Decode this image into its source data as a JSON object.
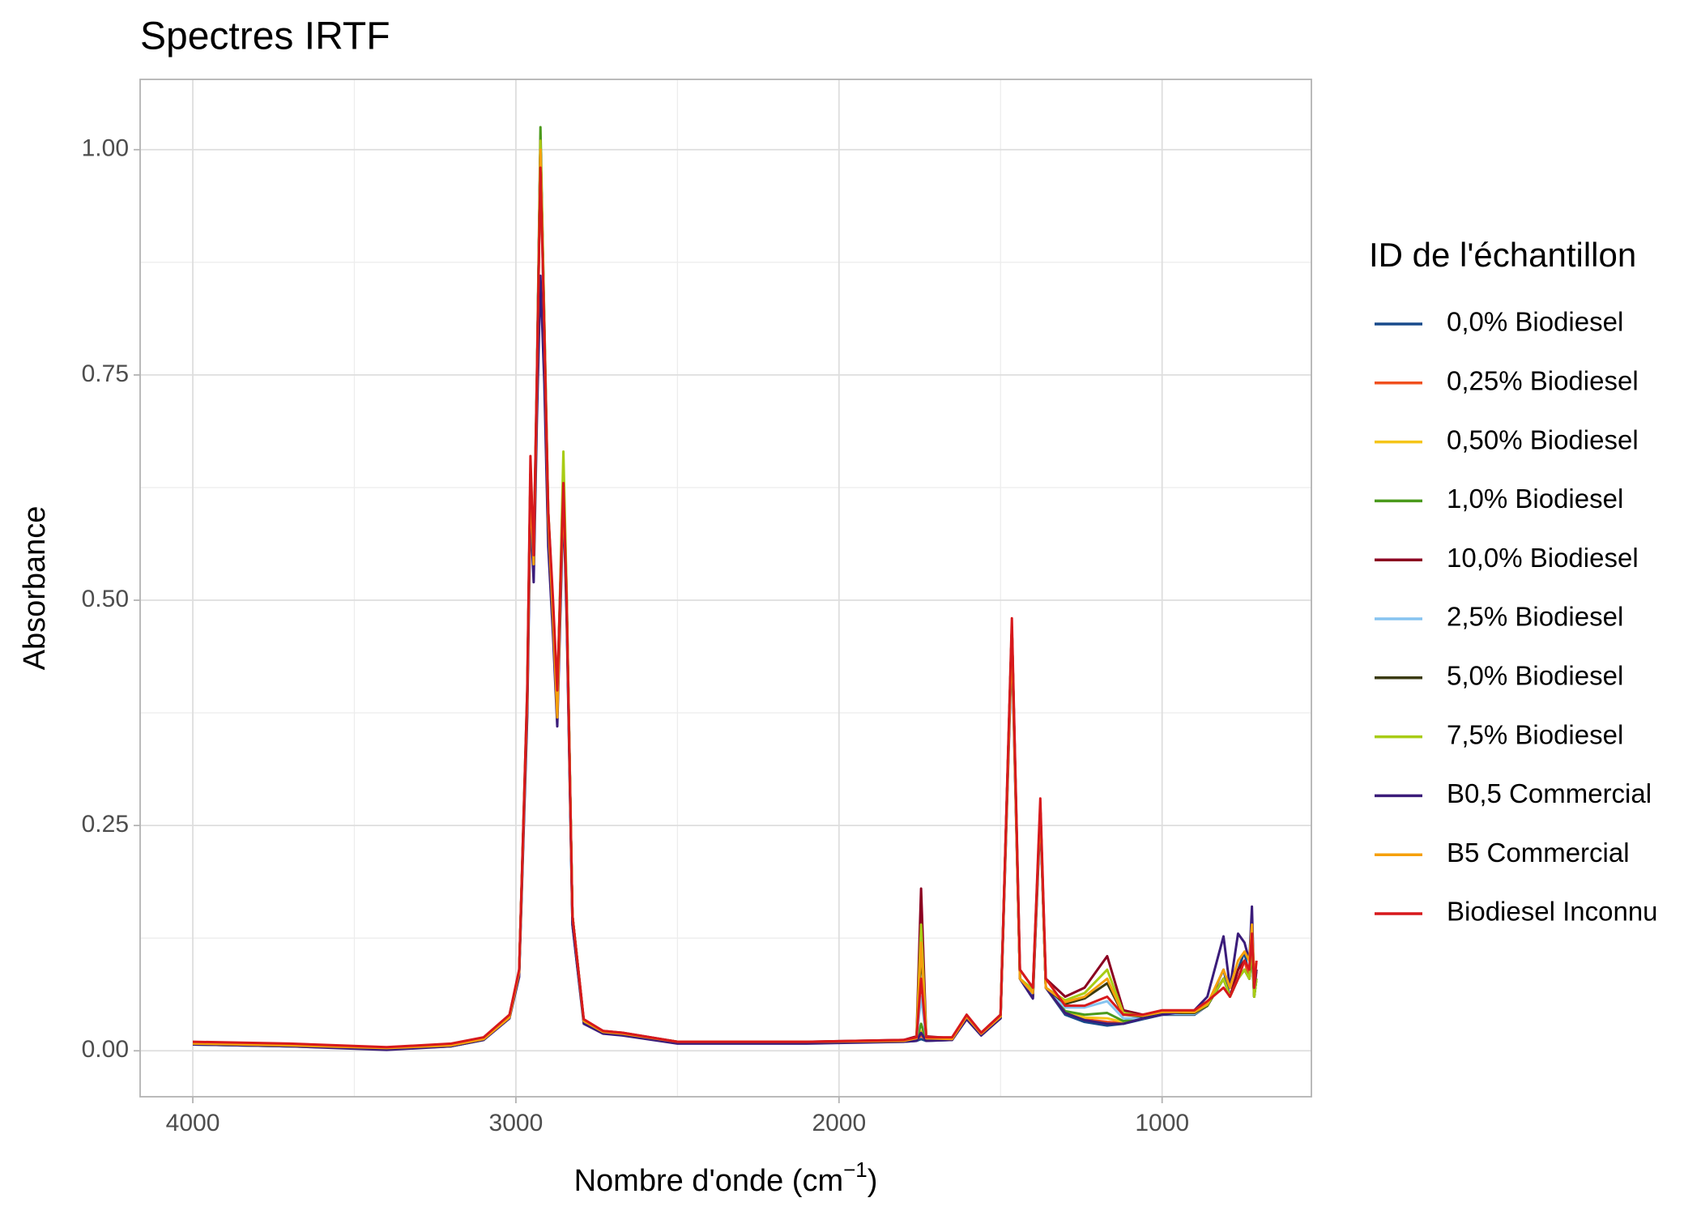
{
  "chart_data": {
    "type": "line",
    "title": "Spectres IRTF",
    "xlabel": {
      "text": "Nombre d'onde (cm",
      "superscript": "−1",
      "close": ")"
    },
    "ylabel": "Absorbance",
    "legend_title": "ID de l'échantillon",
    "legend": "right",
    "grid": true,
    "xlim": [
      4163,
      538
    ],
    "xticks": [
      4000,
      3000,
      2000,
      1000
    ],
    "xminor": [
      3500,
      2500,
      1500
    ],
    "ylim": [
      -0.051,
      1.078
    ],
    "yticks": [
      {
        "value": 0,
        "label": "0.00"
      },
      {
        "value": 0.25,
        "label": "0.25"
      },
      {
        "value": 0.5,
        "label": "0.50"
      },
      {
        "value": 0.75,
        "label": "0.75"
      },
      {
        "value": 1,
        "label": "1.00"
      }
    ],
    "yminor": [
      0.125,
      0.375,
      0.625,
      0.875
    ],
    "x": [
      4000,
      3700,
      3400,
      3200,
      3100,
      3020,
      2990,
      2965,
      2955,
      2945,
      2935,
      2924,
      2912,
      2900,
      2885,
      2872,
      2862,
      2853,
      2843,
      2825,
      2790,
      2730,
      2670,
      2500,
      2100,
      1800,
      1760,
      1746,
      1730,
      1650,
      1605,
      1560,
      1500,
      1465,
      1440,
      1400,
      1377,
      1360,
      1300,
      1240,
      1170,
      1120,
      1060,
      1000,
      900,
      860,
      810,
      790,
      765,
      745,
      730,
      722,
      715,
      708
    ],
    "series": [
      {
        "name": "0,0% Biodiesel",
        "color": "#174a8b",
        "values": [
          0.007,
          0.005,
          0.002,
          0.005,
          0.012,
          0.036,
          0.085,
          0.38,
          0.62,
          0.53,
          0.73,
          1.0,
          0.79,
          0.58,
          0.47,
          0.37,
          0.5,
          0.62,
          0.49,
          0.14,
          0.032,
          0.02,
          0.018,
          0.009,
          0.009,
          0.01,
          0.011,
          0.013,
          0.011,
          0.012,
          0.036,
          0.018,
          0.036,
          0.46,
          0.08,
          0.058,
          0.27,
          0.07,
          0.04,
          0.032,
          0.028,
          0.03,
          0.035,
          0.04,
          0.04,
          0.05,
          0.09,
          0.06,
          0.09,
          0.11,
          0.08,
          0.12,
          0.06,
          0.08
        ]
      },
      {
        "name": "0,25% Biodiesel",
        "color": "#f0501e",
        "values": [
          0.008,
          0.006,
          0.003,
          0.006,
          0.013,
          0.038,
          0.087,
          0.39,
          0.63,
          0.54,
          0.74,
          1.01,
          0.8,
          0.59,
          0.48,
          0.38,
          0.51,
          0.63,
          0.5,
          0.15,
          0.033,
          0.021,
          0.019,
          0.01,
          0.01,
          0.011,
          0.012,
          0.017,
          0.012,
          0.013,
          0.037,
          0.019,
          0.037,
          0.47,
          0.08,
          0.06,
          0.27,
          0.07,
          0.042,
          0.035,
          0.032,
          0.031,
          0.036,
          0.041,
          0.041,
          0.05,
          0.08,
          0.06,
          0.09,
          0.1,
          0.08,
          0.12,
          0.06,
          0.09
        ]
      },
      {
        "name": "0,50% Biodiesel",
        "color": "#f5c518",
        "values": [
          0.008,
          0.006,
          0.003,
          0.006,
          0.013,
          0.038,
          0.086,
          0.38,
          0.63,
          0.53,
          0.73,
          1.0,
          0.8,
          0.59,
          0.48,
          0.38,
          0.51,
          0.62,
          0.5,
          0.15,
          0.033,
          0.021,
          0.019,
          0.01,
          0.01,
          0.011,
          0.012,
          0.022,
          0.012,
          0.013,
          0.037,
          0.019,
          0.037,
          0.47,
          0.08,
          0.06,
          0.27,
          0.07,
          0.043,
          0.037,
          0.036,
          0.032,
          0.036,
          0.041,
          0.041,
          0.05,
          0.08,
          0.06,
          0.09,
          0.1,
          0.09,
          0.12,
          0.07,
          0.09
        ]
      },
      {
        "name": "1,0% Biodiesel",
        "color": "#4b9a1c",
        "values": [
          0.007,
          0.005,
          0.002,
          0.005,
          0.012,
          0.037,
          0.088,
          0.4,
          0.64,
          0.55,
          0.75,
          1.025,
          0.81,
          0.6,
          0.49,
          0.39,
          0.52,
          0.64,
          0.51,
          0.15,
          0.033,
          0.021,
          0.019,
          0.01,
          0.01,
          0.011,
          0.012,
          0.03,
          0.012,
          0.013,
          0.037,
          0.019,
          0.037,
          0.47,
          0.08,
          0.06,
          0.27,
          0.07,
          0.044,
          0.04,
          0.042,
          0.033,
          0.037,
          0.042,
          0.042,
          0.05,
          0.08,
          0.06,
          0.08,
          0.09,
          0.08,
          0.11,
          0.06,
          0.08
        ]
      },
      {
        "name": "10,0% Biodiesel",
        "color": "#8b0020",
        "values": [
          0.009,
          0.007,
          0.003,
          0.007,
          0.014,
          0.039,
          0.089,
          0.39,
          0.64,
          0.54,
          0.74,
          1.01,
          0.8,
          0.59,
          0.49,
          0.39,
          0.52,
          0.63,
          0.5,
          0.15,
          0.034,
          0.022,
          0.02,
          0.01,
          0.01,
          0.012,
          0.016,
          0.18,
          0.016,
          0.014,
          0.04,
          0.02,
          0.04,
          0.47,
          0.09,
          0.07,
          0.27,
          0.08,
          0.06,
          0.07,
          0.105,
          0.045,
          0.04,
          0.044,
          0.044,
          0.052,
          0.08,
          0.06,
          0.09,
          0.1,
          0.09,
          0.14,
          0.07,
          0.09
        ]
      },
      {
        "name": "2,5% Biodiesel",
        "color": "#86c4f0",
        "values": [
          0.008,
          0.006,
          0.003,
          0.006,
          0.013,
          0.038,
          0.087,
          0.39,
          0.63,
          0.54,
          0.74,
          1.0,
          0.8,
          0.59,
          0.48,
          0.38,
          0.51,
          0.63,
          0.5,
          0.15,
          0.033,
          0.021,
          0.019,
          0.01,
          0.01,
          0.011,
          0.013,
          0.06,
          0.013,
          0.013,
          0.038,
          0.019,
          0.038,
          0.47,
          0.08,
          0.062,
          0.27,
          0.07,
          0.048,
          0.048,
          0.055,
          0.036,
          0.036,
          0.041,
          0.041,
          0.05,
          0.08,
          0.06,
          0.08,
          0.09,
          0.08,
          0.11,
          0.06,
          0.08
        ]
      },
      {
        "name": "5,0% Biodiesel",
        "color": "#3a3a10",
        "values": [
          0.008,
          0.006,
          0.003,
          0.006,
          0.013,
          0.038,
          0.088,
          0.39,
          0.64,
          0.54,
          0.74,
          1.01,
          0.8,
          0.59,
          0.48,
          0.38,
          0.52,
          0.63,
          0.5,
          0.15,
          0.033,
          0.021,
          0.019,
          0.01,
          0.01,
          0.011,
          0.014,
          0.11,
          0.014,
          0.013,
          0.039,
          0.019,
          0.039,
          0.47,
          0.08,
          0.065,
          0.27,
          0.07,
          0.052,
          0.058,
          0.075,
          0.04,
          0.038,
          0.042,
          0.042,
          0.05,
          0.08,
          0.06,
          0.08,
          0.09,
          0.08,
          0.11,
          0.06,
          0.08
        ]
      },
      {
        "name": "7,5% Biodiesel",
        "color": "#a8cc14",
        "values": [
          0.008,
          0.006,
          0.003,
          0.006,
          0.013,
          0.038,
          0.088,
          0.39,
          0.64,
          0.54,
          0.74,
          1.01,
          0.81,
          0.6,
          0.49,
          0.39,
          0.53,
          0.665,
          0.51,
          0.15,
          0.033,
          0.021,
          0.019,
          0.01,
          0.01,
          0.011,
          0.015,
          0.14,
          0.015,
          0.013,
          0.039,
          0.02,
          0.039,
          0.47,
          0.08,
          0.068,
          0.27,
          0.07,
          0.056,
          0.064,
          0.09,
          0.042,
          0.039,
          0.043,
          0.043,
          0.051,
          0.08,
          0.06,
          0.08,
          0.09,
          0.08,
          0.12,
          0.06,
          0.08
        ]
      },
      {
        "name": "B0,5 Commercial",
        "color": "#3b1c7a",
        "values": [
          0.007,
          0.005,
          0.001,
          0.005,
          0.012,
          0.036,
          0.082,
          0.37,
          0.6,
          0.52,
          0.7,
          0.86,
          0.74,
          0.56,
          0.46,
          0.36,
          0.49,
          0.61,
          0.48,
          0.14,
          0.03,
          0.019,
          0.017,
          0.008,
          0.008,
          0.01,
          0.011,
          0.02,
          0.011,
          0.012,
          0.035,
          0.017,
          0.036,
          0.45,
          0.08,
          0.058,
          0.26,
          0.07,
          0.042,
          0.034,
          0.03,
          0.03,
          0.036,
          0.04,
          0.045,
          0.06,
          0.127,
          0.07,
          0.13,
          0.12,
          0.1,
          0.16,
          0.07,
          0.09
        ]
      },
      {
        "name": "B5 Commercial",
        "color": "#f5a00c",
        "values": [
          0.008,
          0.006,
          0.003,
          0.006,
          0.013,
          0.037,
          0.087,
          0.39,
          0.63,
          0.54,
          0.74,
          1.0,
          0.8,
          0.59,
          0.48,
          0.37,
          0.51,
          0.62,
          0.5,
          0.15,
          0.033,
          0.021,
          0.019,
          0.01,
          0.01,
          0.011,
          0.014,
          0.12,
          0.014,
          0.013,
          0.038,
          0.019,
          0.038,
          0.46,
          0.08,
          0.064,
          0.27,
          0.07,
          0.054,
          0.06,
          0.08,
          0.04,
          0.039,
          0.043,
          0.043,
          0.052,
          0.09,
          0.07,
          0.1,
          0.11,
          0.1,
          0.14,
          0.08,
          0.1
        ]
      },
      {
        "name": "Biodiesel Inconnu",
        "color": "#d7191c",
        "values": [
          0.01,
          0.008,
          0.004,
          0.008,
          0.015,
          0.04,
          0.09,
          0.4,
          0.66,
          0.55,
          0.75,
          0.98,
          0.8,
          0.6,
          0.5,
          0.4,
          0.52,
          0.63,
          0.5,
          0.15,
          0.035,
          0.022,
          0.02,
          0.01,
          0.01,
          0.012,
          0.015,
          0.08,
          0.015,
          0.015,
          0.04,
          0.02,
          0.04,
          0.48,
          0.09,
          0.07,
          0.28,
          0.08,
          0.05,
          0.05,
          0.06,
          0.04,
          0.04,
          0.045,
          0.045,
          0.055,
          0.07,
          0.06,
          0.08,
          0.1,
          0.09,
          0.13,
          0.07,
          0.1
        ]
      }
    ]
  }
}
